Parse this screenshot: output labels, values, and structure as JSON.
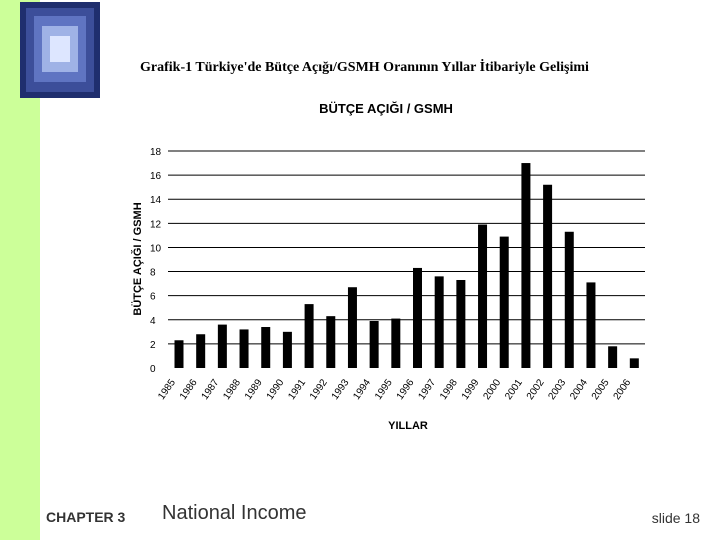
{
  "slide": {
    "title": "Grafik-1 Türkiye'de Bütçe Açığı/GSMH Oranının Yıllar İtibariyle Gelişimi",
    "chapter": "CHAPTER 3",
    "topic": "National Income",
    "number": "slide 18",
    "accent_color": "#ccff99"
  },
  "chart_data": {
    "type": "bar",
    "title": "BÜTÇE AÇIĞI / GSMH",
    "xlabel": "YILLAR",
    "ylabel": "BÜTÇE AÇIĞI / GSMH",
    "categories": [
      "1985",
      "1986",
      "1987",
      "1988",
      "1989",
      "1990",
      "1991",
      "1992",
      "1993",
      "1994",
      "1995",
      "1996",
      "1997",
      "1998",
      "1999",
      "2000",
      "2001",
      "2002",
      "2003",
      "2004",
      "2005",
      "2006"
    ],
    "values": [
      2.3,
      2.8,
      3.6,
      3.2,
      3.4,
      3.0,
      5.3,
      4.3,
      6.7,
      3.9,
      4.1,
      8.3,
      7.6,
      7.3,
      11.9,
      10.9,
      17.0,
      15.2,
      11.3,
      7.1,
      1.8,
      0.8
    ],
    "ylim": [
      0,
      18
    ],
    "yticks": [
      0,
      2,
      4,
      6,
      8,
      10,
      12,
      14,
      16,
      18
    ],
    "grid": true,
    "bar_color": "#000000"
  }
}
